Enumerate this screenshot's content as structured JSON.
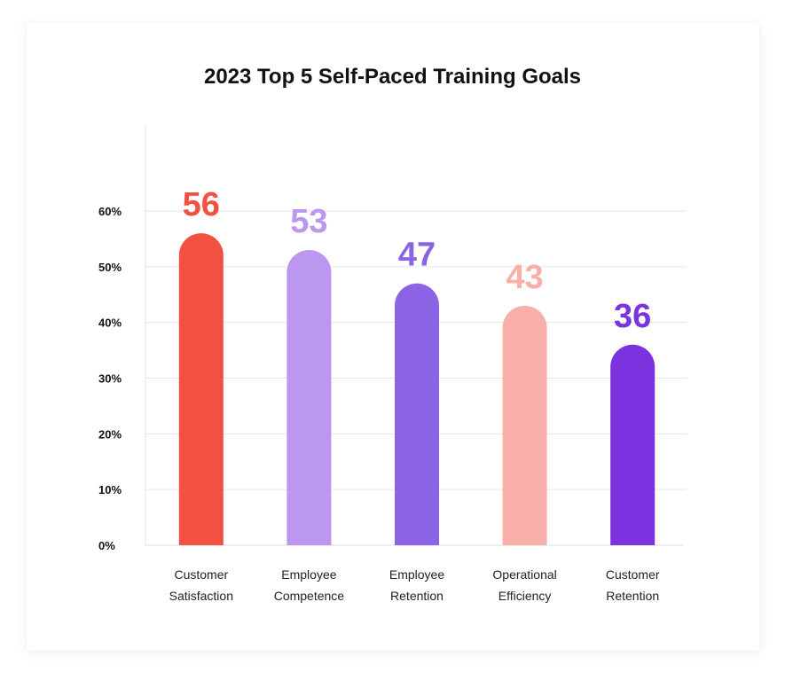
{
  "chart_data": {
    "type": "bar",
    "title": "2023 Top 5 Self-Paced Training Goals",
    "categories": [
      [
        "Customer",
        "Satisfaction"
      ],
      [
        "Employee",
        "Competence"
      ],
      [
        "Employee",
        "Retention"
      ],
      [
        "Operational",
        "Efficiency"
      ],
      [
        "Customer",
        "Retention"
      ]
    ],
    "values": [
      56,
      53,
      47,
      43,
      36
    ],
    "value_labels": [
      "56",
      "53",
      "47",
      "43",
      "36"
    ],
    "colors": [
      "#f25142",
      "#bc97ef",
      "#8b64e6",
      "#f9afa9",
      "#7b33df"
    ],
    "y_ticks": [
      {
        "value": 0,
        "label": "0%"
      },
      {
        "value": 10,
        "label": "10%"
      },
      {
        "value": 20,
        "label": "20%"
      },
      {
        "value": 30,
        "label": "30%"
      },
      {
        "value": 40,
        "label": "40%"
      },
      {
        "value": 50,
        "label": "50%"
      },
      {
        "value": 60,
        "label": "60%"
      }
    ],
    "ylim": [
      0,
      75
    ],
    "grid": true,
    "bar_shape": "rounded-top"
  }
}
